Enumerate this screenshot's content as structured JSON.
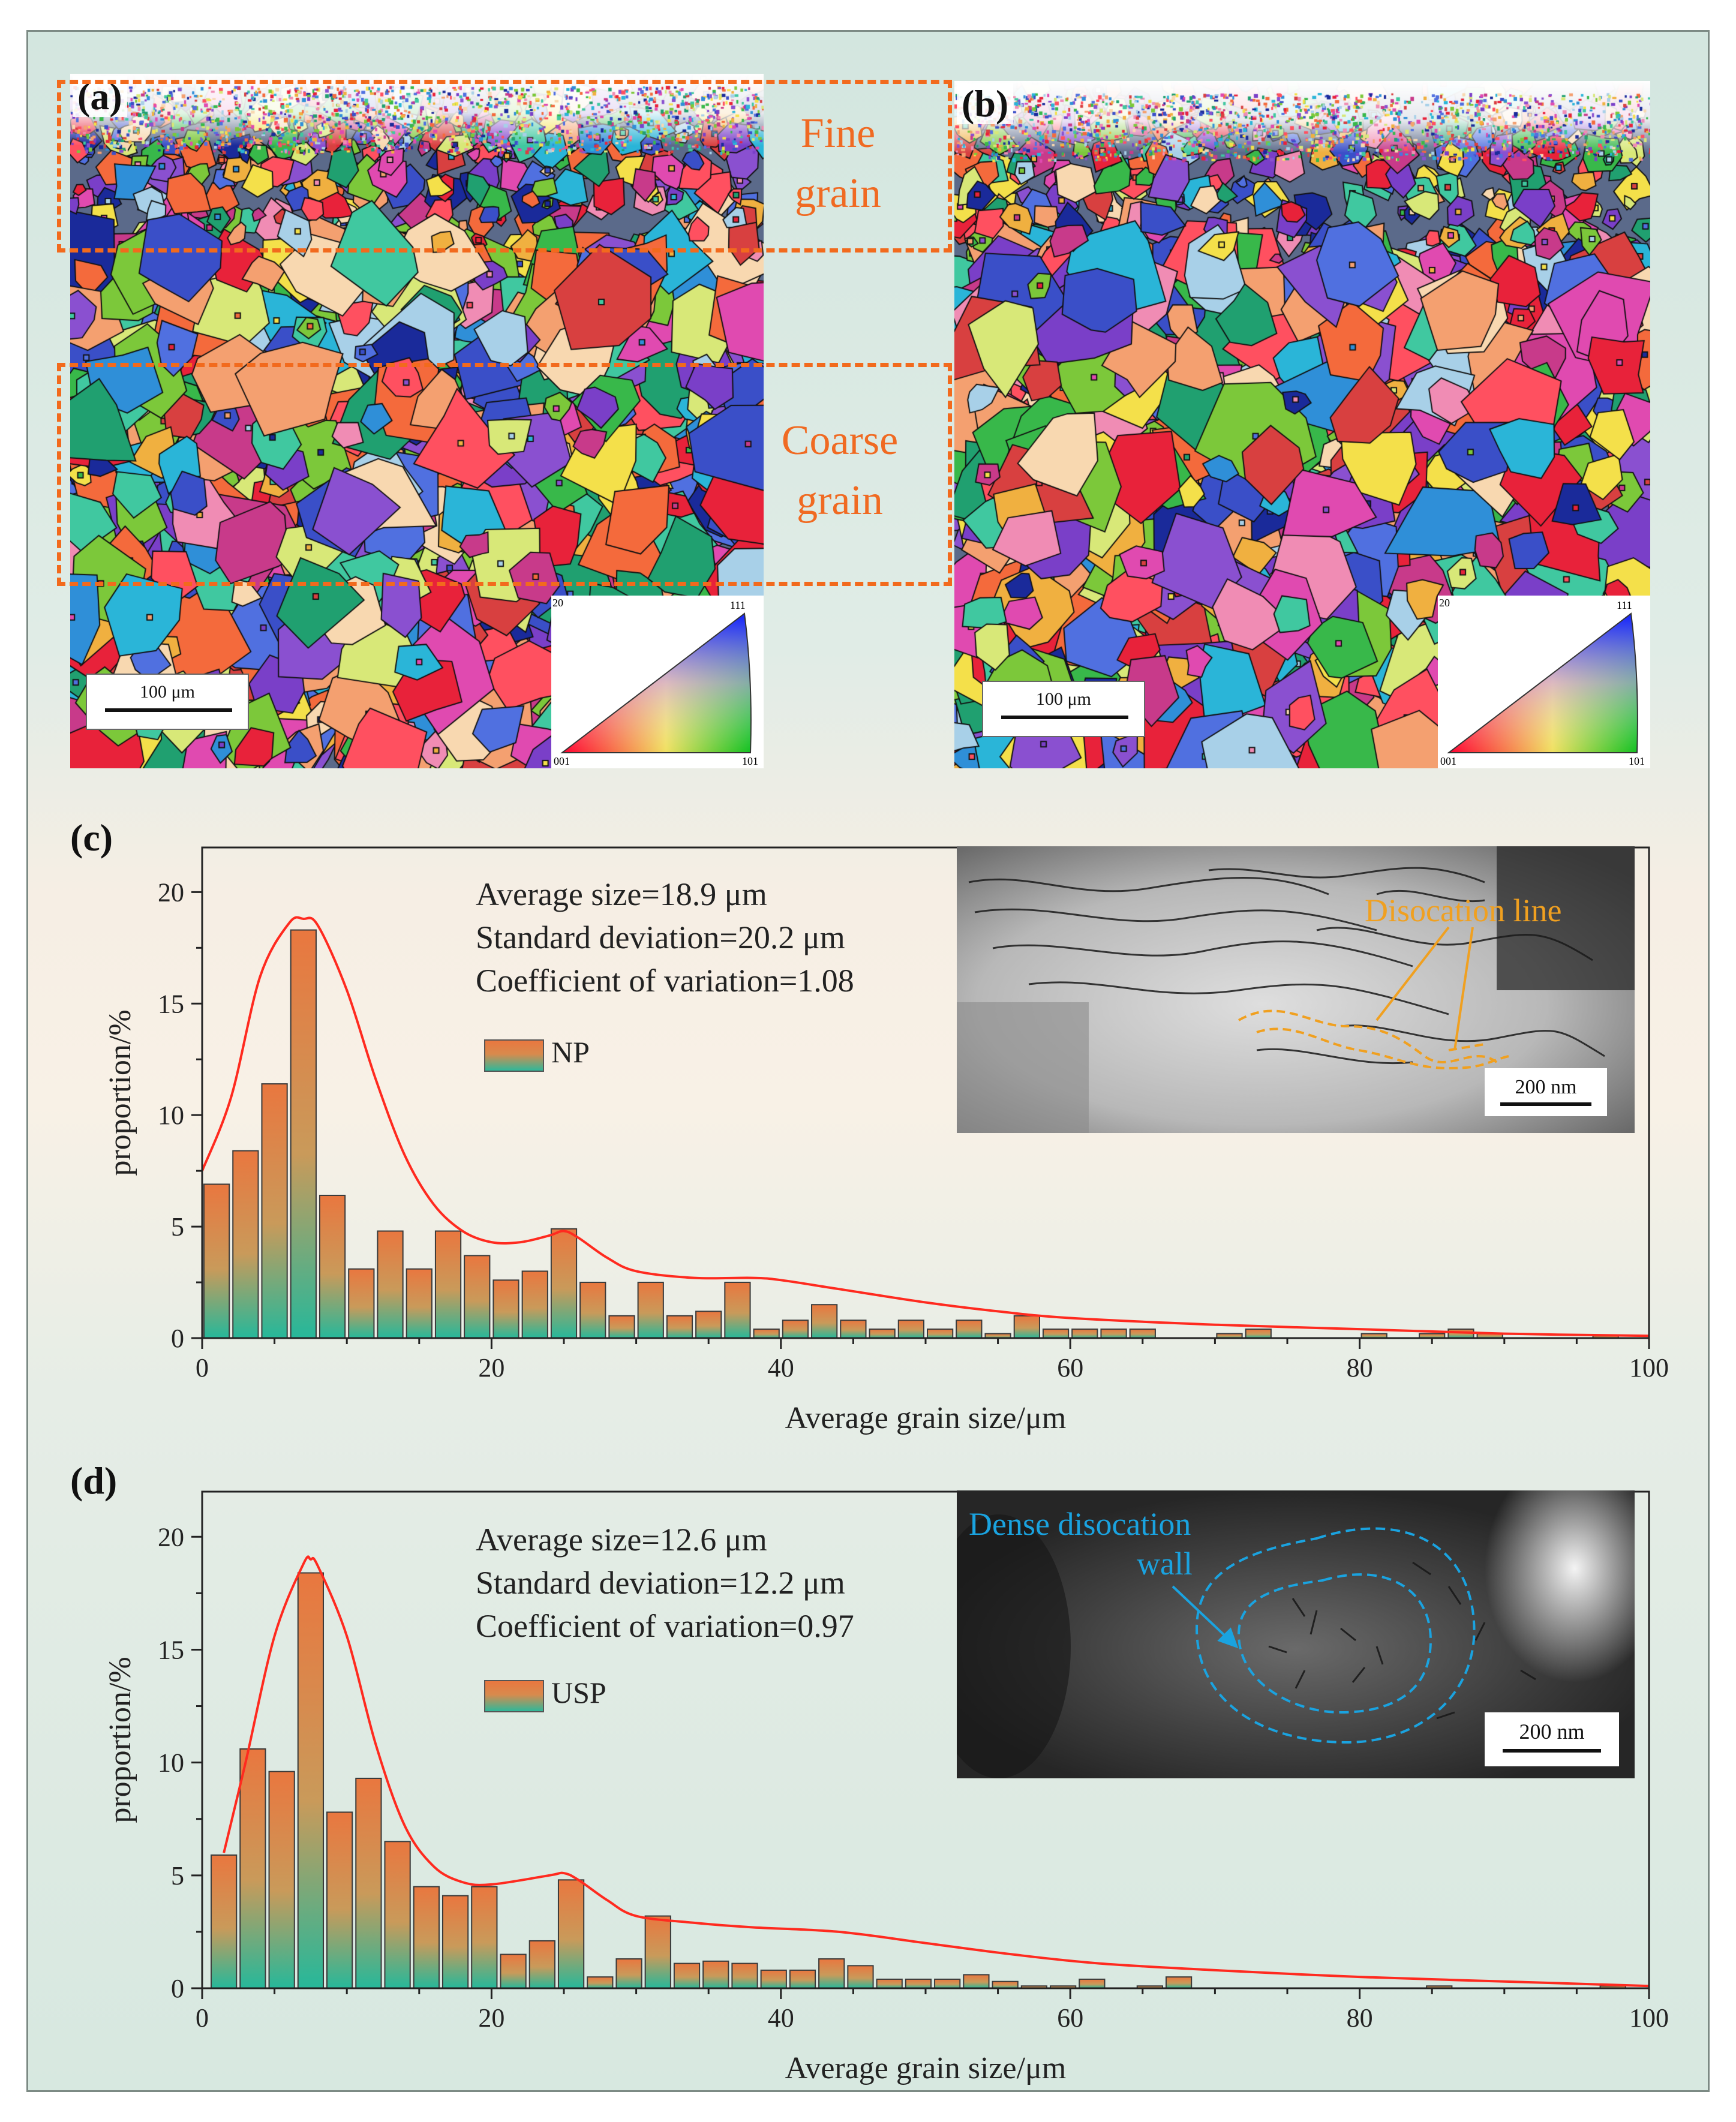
{
  "panels": {
    "a": {
      "letter": "(a)",
      "regions": {
        "fine": "Fine grain",
        "coarse": "Coarse grain"
      },
      "scale": "100 μm",
      "ipf": {
        "c001": "001",
        "c101": "101",
        "c111": "111",
        "c20": "20"
      }
    },
    "b": {
      "letter": "(b)",
      "scale": "100 μm",
      "ipf": {
        "c001": "001",
        "c101": "101",
        "c111": "111",
        "c20": "20"
      }
    },
    "c": {
      "letter": "(c)",
      "stats": [
        "Average size=18.9 μm",
        "Standard deviation=20.2 μm",
        "Coefficient of variation=1.08"
      ],
      "legend": "NP",
      "tem": {
        "annotation": "Disocation line",
        "scale": "200 nm"
      }
    },
    "d": {
      "letter": "(d)",
      "stats": [
        "Average size=12.6 μm",
        "Standard deviation=12.2 μm",
        "Coefficient of variation=0.97"
      ],
      "legend": "USP",
      "tem": {
        "annotation_line1": "Dense disocation",
        "annotation_line2": "wall",
        "scale": "200 nm"
      }
    }
  },
  "colors": {
    "region_orange": "#f26a1d",
    "fit_curve": "#ff2a1f",
    "dislocation_annotation": "#f0a020",
    "wall_annotation": "#1aa3e0",
    "bar_top": "#e9773f",
    "bar_bottom": "#26b89a"
  },
  "chart_data": [
    {
      "id": "c",
      "type": "bar",
      "series_name": "NP",
      "xlabel": "Average grain size/μm",
      "ylabel": "proportion/%",
      "xlim": [
        0,
        100
      ],
      "ylim": [
        0,
        22
      ],
      "xticks": [
        0,
        20,
        40,
        60,
        80,
        100
      ],
      "yticks": [
        0,
        5,
        10,
        15,
        20
      ],
      "bin_width": 2,
      "x": [
        1,
        3,
        5,
        7,
        9,
        11,
        13,
        15,
        17,
        19,
        21,
        23,
        25,
        27,
        29,
        31,
        33,
        35,
        37,
        39,
        41,
        43,
        45,
        47,
        49,
        51,
        53,
        55,
        57,
        59,
        61,
        63,
        65,
        67,
        69,
        71,
        73,
        75,
        77,
        79,
        81,
        83,
        85,
        87,
        89,
        91,
        93,
        95,
        97,
        99
      ],
      "values": [
        6.9,
        8.4,
        11.4,
        18.3,
        6.4,
        3.1,
        4.8,
        3.1,
        4.8,
        3.7,
        2.6,
        3.0,
        4.9,
        2.5,
        1.0,
        2.5,
        1.0,
        1.2,
        2.5,
        0.4,
        0.8,
        1.5,
        0.8,
        0.4,
        0.8,
        0.4,
        0.8,
        0.2,
        1.0,
        0.4,
        0.4,
        0.4,
        0.4,
        0,
        0,
        0.2,
        0.4,
        0,
        0,
        0,
        0.2,
        0,
        0.2,
        0.4,
        0.2,
        0,
        0,
        0,
        0.1,
        0
      ],
      "fit_curve": {
        "x": [
          0,
          2,
          4,
          6,
          7,
          8,
          10,
          12,
          14,
          16,
          18,
          20,
          22,
          24,
          25,
          26,
          28,
          30,
          34,
          38,
          40,
          44,
          50,
          55,
          60,
          70,
          80,
          90,
          100
        ],
        "y": [
          7.5,
          10.8,
          16.2,
          18.6,
          18.8,
          18.5,
          15.6,
          11.6,
          8.2,
          6.0,
          4.8,
          4.3,
          4.3,
          4.6,
          4.8,
          4.5,
          3.6,
          3.0,
          2.7,
          2.7,
          2.6,
          2.2,
          1.6,
          1.2,
          0.9,
          0.6,
          0.4,
          0.2,
          0.1
        ]
      },
      "annotations": [
        "Average size=18.9 μm",
        "Standard deviation=20.2 μm",
        "Coefficient of variation=1.08"
      ]
    },
    {
      "id": "d",
      "type": "bar",
      "series_name": "USP",
      "xlabel": "Average grain size/μm",
      "ylabel": "proportion/%",
      "xlim": [
        0,
        100
      ],
      "ylim": [
        0,
        22
      ],
      "xticks": [
        0,
        20,
        40,
        60,
        80,
        100
      ],
      "yticks": [
        0,
        5,
        10,
        15,
        20
      ],
      "bin_width": 2,
      "x": [
        1.5,
        3.5,
        5.5,
        7.5,
        9.5,
        11.5,
        13.5,
        15.5,
        17.5,
        19.5,
        21.5,
        23.5,
        25.5,
        27.5,
        29.5,
        31.5,
        33.5,
        35.5,
        37.5,
        39.5,
        41.5,
        43.5,
        45.5,
        47.5,
        49.5,
        51.5,
        53.5,
        55.5,
        57.5,
        59.5,
        61.5,
        63.5,
        65.5,
        67.5,
        69.5,
        71.5,
        73.5,
        75.5,
        77.5,
        79.5,
        81.5,
        83.5,
        85.5,
        87.5,
        89.5,
        91.5,
        93.5,
        95.5,
        97.5,
        99.5
      ],
      "values": [
        5.9,
        10.6,
        9.6,
        18.4,
        7.8,
        9.3,
        6.5,
        4.5,
        4.1,
        4.5,
        1.5,
        2.1,
        4.8,
        0.5,
        1.3,
        3.2,
        1.1,
        1.2,
        1.1,
        0.8,
        0.8,
        1.3,
        1.0,
        0.4,
        0.4,
        0.4,
        0.6,
        0.3,
        0.1,
        0.1,
        0.4,
        0,
        0.1,
        0.5,
        0,
        0,
        0,
        0,
        0,
        0,
        0,
        0,
        0.1,
        0,
        0,
        0,
        0,
        0,
        0.1,
        0
      ],
      "fit_curve": {
        "x": [
          1.5,
          3,
          5,
          7,
          7.5,
          8,
          10,
          12,
          14,
          16,
          18,
          20,
          24,
          25,
          26,
          28,
          30,
          34,
          38,
          44,
          50,
          56,
          62,
          70,
          80,
          90,
          100
        ],
        "y": [
          6.0,
          10.0,
          15.6,
          18.8,
          19.0,
          18.7,
          15.6,
          10.8,
          7.2,
          5.4,
          4.7,
          4.6,
          5.0,
          5.1,
          4.8,
          3.9,
          3.2,
          2.9,
          2.7,
          2.5,
          2.0,
          1.5,
          1.1,
          0.8,
          0.5,
          0.3,
          0.1
        ]
      },
      "annotations": [
        "Average size=12.6 μm",
        "Standard deviation=12.2 μm",
        "Coefficient of variation=0.97"
      ]
    }
  ]
}
